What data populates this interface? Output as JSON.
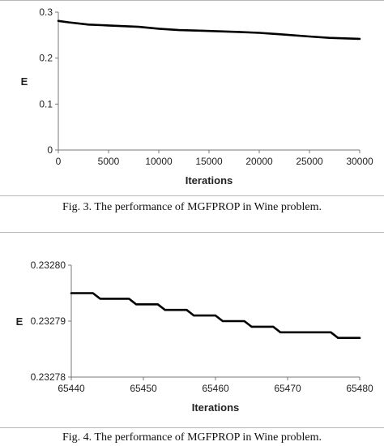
{
  "chart_data": [
    {
      "type": "line",
      "xlabel": "Iterations",
      "ylabel": "E",
      "xlim": [
        0,
        30000
      ],
      "ylim": [
        0,
        0.3
      ],
      "x_ticks": [
        "0",
        "5000",
        "10000",
        "15000",
        "20000",
        "25000",
        "30000"
      ],
      "y_ticks": [
        "0",
        "0.1",
        "0.2",
        "0.3"
      ],
      "grid": false,
      "legend": "none",
      "series": [
        {
          "x": [
            0,
            1000,
            3000,
            5000,
            8000,
            10000,
            12000,
            15000,
            18000,
            20000,
            22000,
            25000,
            27000,
            30000
          ],
          "y": [
            0.281,
            0.278,
            0.273,
            0.271,
            0.268,
            0.264,
            0.261,
            0.259,
            0.257,
            0.255,
            0.252,
            0.247,
            0.244,
            0.242
          ]
        }
      ]
    },
    {
      "type": "line",
      "xlabel": "Iterations",
      "ylabel": "E",
      "xlim": [
        65440,
        65480
      ],
      "ylim": [
        0.23278,
        0.2328
      ],
      "x_ticks": [
        "65440",
        "65450",
        "65460",
        "65470",
        "65480"
      ],
      "y_ticks": [
        "0.23278",
        "0.23279",
        "0.23280"
      ],
      "grid": false,
      "legend": "none",
      "series": [
        {
          "x": [
            65440,
            65443,
            65444,
            65448,
            65449,
            65452,
            65453,
            65456,
            65457,
            65460,
            65461,
            65464,
            65465,
            65468,
            65469,
            65472,
            65473,
            65476,
            65477,
            65480
          ],
          "y": [
            0.232795,
            0.232795,
            0.232794,
            0.232794,
            0.232793,
            0.232793,
            0.232792,
            0.232792,
            0.232791,
            0.232791,
            0.23279,
            0.23279,
            0.232789,
            0.232789,
            0.232788,
            0.232788,
            0.232788,
            0.232788,
            0.232787,
            0.232787
          ]
        }
      ]
    }
  ],
  "captions": [
    "Fig. 3.   The performance of MGFPROP in Wine problem.",
    "Fig. 4.   The performance of MGFPROP in Wine problem."
  ]
}
